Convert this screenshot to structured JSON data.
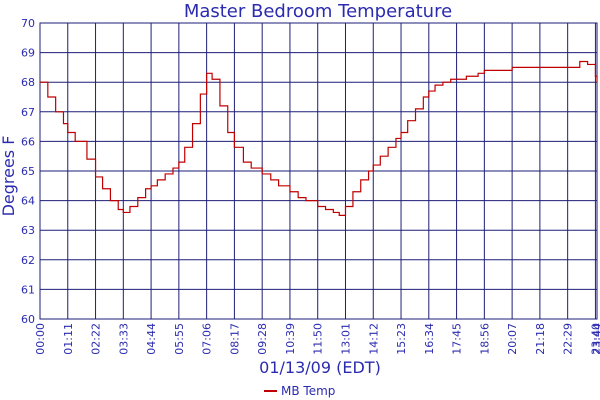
{
  "chart_data": {
    "type": "line",
    "title": "Master Bedroom Temperature",
    "xlabel": "01/13/09 (EDT)",
    "ylabel": "Degrees F",
    "ylim": [
      60,
      70
    ],
    "y_ticks": [
      "60",
      "61",
      "62",
      "63",
      "64",
      "65",
      "66",
      "67",
      "68",
      "69",
      "70"
    ],
    "x_ticks": [
      "00:00",
      "01:11",
      "02:22",
      "03:33",
      "04:44",
      "05:55",
      "07:06",
      "08:17",
      "09:28",
      "10:39",
      "11:50",
      "13:01",
      "14:12",
      "15:23",
      "16:34",
      "17:45",
      "18:56",
      "20:07",
      "21:18",
      "22:29",
      "23:40",
      "23:44"
    ],
    "grid": true,
    "legend_position": "bottom-center",
    "colors": {
      "plot_border": "#1e1e78",
      "grid": "#1e1e78",
      "text": "#2b2bb0",
      "series": "#c00000"
    },
    "series": [
      {
        "name": "MB Temp",
        "x": [
          "00:00",
          "00:20",
          "00:40",
          "01:00",
          "01:11",
          "01:30",
          "02:00",
          "02:22",
          "02:40",
          "03:00",
          "03:20",
          "03:33",
          "03:50",
          "04:10",
          "04:30",
          "04:44",
          "05:00",
          "05:20",
          "05:40",
          "05:55",
          "06:10",
          "06:30",
          "06:50",
          "07:06",
          "07:20",
          "07:40",
          "08:00",
          "08:17",
          "08:40",
          "09:00",
          "09:28",
          "09:50",
          "10:10",
          "10:39",
          "11:00",
          "11:20",
          "11:50",
          "12:10",
          "12:30",
          "12:45",
          "13:01",
          "13:20",
          "13:40",
          "14:00",
          "14:12",
          "14:30",
          "14:50",
          "15:10",
          "15:23",
          "15:40",
          "16:00",
          "16:20",
          "16:34",
          "16:50",
          "17:10",
          "17:30",
          "17:45",
          "18:10",
          "18:40",
          "18:56",
          "19:30",
          "20:07",
          "20:40",
          "21:18",
          "21:50",
          "22:29",
          "23:00",
          "23:20",
          "23:40",
          "23:44"
        ],
        "values": [
          68.0,
          67.5,
          67.0,
          66.6,
          66.3,
          66.0,
          65.4,
          64.8,
          64.4,
          64.0,
          63.7,
          63.6,
          63.8,
          64.1,
          64.4,
          64.5,
          64.7,
          64.9,
          65.1,
          65.3,
          65.8,
          66.6,
          67.6,
          68.3,
          68.1,
          67.2,
          66.3,
          65.8,
          65.3,
          65.1,
          64.9,
          64.7,
          64.5,
          64.3,
          64.1,
          64.0,
          63.8,
          63.7,
          63.6,
          63.5,
          63.8,
          64.3,
          64.7,
          65.0,
          65.2,
          65.5,
          65.8,
          66.1,
          66.3,
          66.7,
          67.1,
          67.5,
          67.7,
          67.9,
          68.0,
          68.1,
          68.1,
          68.2,
          68.3,
          68.4,
          68.4,
          68.5,
          68.5,
          68.5,
          68.5,
          68.5,
          68.7,
          68.6,
          68.2,
          68.0
        ]
      }
    ]
  }
}
